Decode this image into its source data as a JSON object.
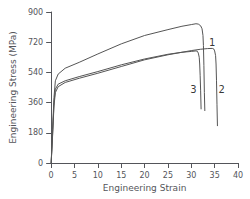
{
  "chart_data": {
    "type": "line",
    "title": "",
    "xlabel": "Engineering Strain",
    "ylabel": "Engineering Stress (MPa)",
    "xlim": [
      0,
      40
    ],
    "ylim": [
      0,
      900
    ],
    "xticks": [
      0,
      5,
      10,
      15,
      20,
      25,
      30,
      35,
      40
    ],
    "yticks": [
      0,
      180,
      360,
      540,
      720,
      900
    ],
    "grid": false,
    "series": [
      {
        "color": "#555555",
        "x": [
          0,
          0.3,
          0.6,
          0.9,
          1.5,
          3,
          6,
          10,
          15,
          20,
          25,
          28,
          30,
          31.0,
          31.5,
          32.0,
          32.3,
          32.5,
          32.6,
          32.7,
          32.8,
          32.9
        ],
        "values": [
          0,
          200,
          390,
          490,
          530,
          565,
          600,
          650,
          710,
          760,
          795,
          815,
          825,
          830,
          828,
          818,
          800,
          760,
          700,
          580,
          420,
          310
        ]
      },
      {
        "color": "#555555",
        "x": [
          0,
          0.3,
          0.6,
          0.9,
          1.5,
          3,
          6,
          10,
          15,
          20,
          25,
          28,
          30,
          32,
          33.5,
          34.5,
          34.8,
          35.0,
          35.2,
          35.3,
          35.4,
          35.5,
          35.6
        ],
        "values": [
          0,
          160,
          340,
          420,
          455,
          480,
          505,
          535,
          575,
          615,
          645,
          660,
          670,
          678,
          682,
          683,
          680,
          668,
          640,
          590,
          490,
          350,
          220
        ]
      },
      {
        "color": "#555555",
        "x": [
          0,
          0.3,
          0.6,
          0.9,
          1.5,
          3,
          6,
          10,
          15,
          20,
          25,
          28,
          30,
          31.0,
          31.3,
          31.5,
          31.7,
          31.8,
          31.9,
          32.0,
          32.1
        ],
        "values": [
          0,
          170,
          360,
          440,
          470,
          490,
          515,
          545,
          585,
          620,
          648,
          660,
          665,
          668,
          666,
          655,
          630,
          590,
          520,
          430,
          320
        ]
      }
    ],
    "annotations": [
      {
        "text": "1",
        "x": 33.8,
        "y": 718
      },
      {
        "text": "2",
        "x": 35.8,
        "y": 440
      },
      {
        "text": "3",
        "x": 29.8,
        "y": 440
      }
    ]
  }
}
